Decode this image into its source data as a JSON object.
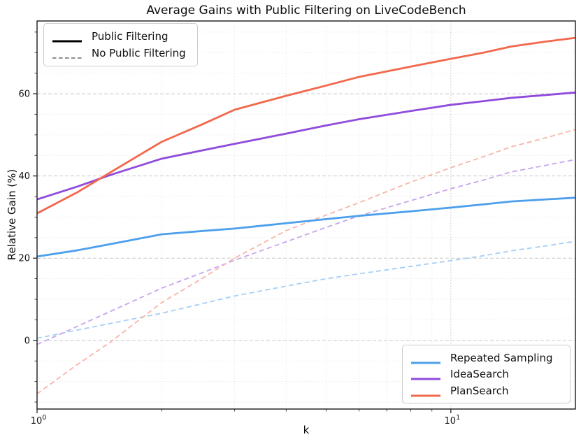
{
  "title": "Average Gains with Public Filtering on LiveCodeBench",
  "legends": {
    "style": {
      "items": [
        {
          "label": "Public Filtering",
          "color": "#000000",
          "dash": "solid"
        },
        {
          "label": "No Public Filtering",
          "color": "#7f7f7f",
          "dash": "dashed"
        }
      ]
    },
    "series": {
      "items": [
        {
          "label": "Repeated Sampling",
          "color": "#4D9FEC"
        },
        {
          "label": "IdeaSearch",
          "color": "#8F4BDB"
        },
        {
          "label": "PlanSearch",
          "color": "#F2684C"
        }
      ]
    }
  },
  "chart_data": {
    "type": "line",
    "title": "Average Gains with Public Filtering on LiveCodeBench",
    "xlabel": "k",
    "ylabel": "Relative Gain (%)",
    "xscale": "log",
    "xlim": [
      1,
      20
    ],
    "ylim": [
      -16.7,
      77.7
    ],
    "grid": true,
    "x": [
      1,
      1.25,
      1.5,
      2,
      2.5,
      3,
      4,
      5,
      6,
      8,
      10,
      12,
      14,
      17,
      20
    ],
    "series": [
      {
        "name": "Repeated Sampling (No Public Filtering)",
        "color": "#A6CFF5",
        "dash": "dashed",
        "values": [
          0.5,
          2.5,
          4.1,
          6.6,
          8.9,
          10.8,
          13.2,
          15.0,
          16.2,
          18.0,
          19.4,
          20.6,
          21.8,
          23.0,
          24.1
        ]
      },
      {
        "name": "IdeaSearch (No Public Filtering)",
        "color": "#C7A5ED",
        "dash": "dashed",
        "values": [
          -1.0,
          3.4,
          7.0,
          12.7,
          16.4,
          19.5,
          24.0,
          27.5,
          30.3,
          34.0,
          36.9,
          39.0,
          41.0,
          42.6,
          44.0
        ]
      },
      {
        "name": "PlanSearch (No Public Filtering)",
        "color": "#F8B4A7",
        "dash": "dashed",
        "values": [
          -13.0,
          -5.9,
          -0.5,
          9.2,
          15.0,
          20.0,
          26.7,
          30.5,
          33.5,
          38.5,
          42.0,
          44.7,
          47.1,
          49.3,
          51.3
        ]
      },
      {
        "name": "Repeated Sampling (Public Filtering)",
        "color": "#4D9FEC",
        "dash": "solid",
        "values": [
          20.4,
          21.9,
          23.4,
          25.8,
          26.6,
          27.2,
          28.5,
          29.5,
          30.3,
          31.4,
          32.3,
          33.1,
          33.8,
          34.3,
          34.7
        ]
      },
      {
        "name": "IdeaSearch (Public Filtering)",
        "color": "#8F4BDB",
        "dash": "solid",
        "values": [
          34.3,
          37.4,
          40.2,
          44.2,
          46.2,
          47.8,
          50.3,
          52.3,
          53.8,
          55.8,
          57.3,
          58.2,
          59.0,
          59.7,
          60.3
        ]
      },
      {
        "name": "PlanSearch (Public Filtering)",
        "color": "#F2684C",
        "dash": "solid",
        "values": [
          30.9,
          36.0,
          40.8,
          48.3,
          52.5,
          56.1,
          59.5,
          62.0,
          64.1,
          66.6,
          68.5,
          70.0,
          71.5,
          72.7,
          73.6
        ]
      }
    ],
    "xticks_major": [
      {
        "value": 1,
        "base": "10",
        "exp": "0"
      },
      {
        "value": 10,
        "base": "10",
        "exp": "1"
      }
    ],
    "xticks_minor": [
      2,
      3,
      4,
      5,
      6,
      7,
      8,
      9
    ],
    "yticks_major": [
      {
        "value": 0,
        "label": "0"
      },
      {
        "value": 20,
        "label": "20"
      },
      {
        "value": 40,
        "label": "40"
      },
      {
        "value": 60,
        "label": "60"
      }
    ],
    "yticks_minor": [
      -15,
      -10,
      -5,
      5,
      10,
      15,
      25,
      30,
      35,
      45,
      50,
      55,
      65,
      70,
      75
    ],
    "legend_position": {
      "style_legend": "upper left",
      "series_legend": "lower right"
    }
  }
}
